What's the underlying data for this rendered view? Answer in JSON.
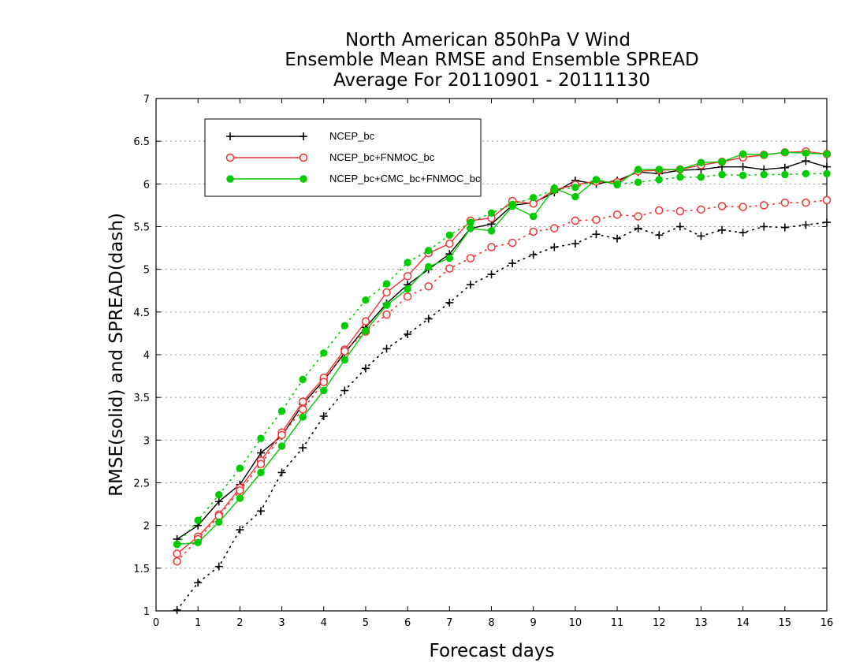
{
  "chart_data": {
    "type": "line",
    "title": [
      "North American 850hPa V Wind",
      "Ensemble Mean RMSE and Ensemble SPREAD",
      "Average For 20110901 - 20111130"
    ],
    "xlabel": "Forecast days",
    "ylabel": "RMSE(solid) and SPREAD(dash)",
    "xlim": [
      0,
      16
    ],
    "ylim": [
      1,
      7
    ],
    "xticks": [
      "0",
      "1",
      "2",
      "3",
      "4",
      "5",
      "6",
      "7",
      "8",
      "9",
      "10",
      "11",
      "12",
      "13",
      "14",
      "15",
      "16"
    ],
    "yticks": [
      "1",
      "1.5",
      "2",
      "2.5",
      "3",
      "3.5",
      "4",
      "4.5",
      "5",
      "5.5",
      "6",
      "6.5",
      "7"
    ],
    "grid": "horizontal dotted",
    "legend_position": "top-left",
    "x": [
      0.5,
      1,
      1.5,
      2,
      2.5,
      3,
      3.5,
      4,
      4.5,
      5,
      5.5,
      6,
      6.5,
      7,
      7.5,
      8,
      8.5,
      9,
      9.5,
      10,
      10.5,
      11,
      11.5,
      12,
      12.5,
      13,
      13.5,
      14,
      14.5,
      15,
      15.5,
      16
    ],
    "series": [
      {
        "name": "NCEP_bc",
        "color": "#000000",
        "marker": "plus",
        "rmse": [
          1.84,
          2.0,
          2.28,
          2.48,
          2.85,
          3.05,
          3.42,
          3.7,
          4.02,
          4.32,
          4.6,
          4.82,
          5.0,
          5.18,
          5.48,
          5.53,
          5.75,
          5.78,
          5.9,
          6.04,
          6.0,
          6.04,
          6.14,
          6.12,
          6.16,
          6.17,
          6.2,
          6.2,
          6.17,
          6.19,
          6.27,
          6.2
        ],
        "spread": [
          1.01,
          1.33,
          1.52,
          1.95,
          2.17,
          2.62,
          2.91,
          3.28,
          3.58,
          3.84,
          4.07,
          4.24,
          4.42,
          4.61,
          4.82,
          4.94,
          5.07,
          5.17,
          5.26,
          5.3,
          5.41,
          5.36,
          5.48,
          5.4,
          5.5,
          5.39,
          5.46,
          5.43,
          5.5,
          5.49,
          5.52,
          5.55
        ]
      },
      {
        "name": "NCEP_bc+FNMOC_bc",
        "color": "#ee3333",
        "marker": "open-circle",
        "rmse": [
          1.67,
          1.87,
          2.13,
          2.44,
          2.76,
          3.09,
          3.45,
          3.73,
          4.06,
          4.39,
          4.73,
          4.92,
          5.19,
          5.3,
          5.57,
          5.6,
          5.8,
          5.77,
          5.93,
          5.99,
          6.03,
          6.02,
          6.15,
          6.16,
          6.17,
          6.22,
          6.26,
          6.31,
          6.34,
          6.37,
          6.38,
          6.35
        ],
        "spread": [
          1.58,
          1.84,
          2.11,
          2.41,
          2.72,
          3.06,
          3.36,
          3.68,
          4.04,
          4.27,
          4.47,
          4.68,
          4.8,
          5.01,
          5.13,
          5.26,
          5.31,
          5.44,
          5.48,
          5.57,
          5.58,
          5.64,
          5.62,
          5.69,
          5.68,
          5.7,
          5.74,
          5.73,
          5.75,
          5.78,
          5.78,
          5.81
        ]
      },
      {
        "name": "NCEP_bc+CMC_bc+FNMOC_bc",
        "color": "#00cc00",
        "marker": "filled-circle",
        "rmse": [
          1.78,
          1.8,
          2.04,
          2.32,
          2.62,
          2.93,
          3.27,
          3.58,
          3.94,
          4.28,
          4.58,
          4.77,
          5.03,
          5.13,
          5.48,
          5.45,
          5.74,
          5.62,
          5.95,
          5.85,
          6.05,
          5.99,
          6.17,
          6.17,
          6.17,
          6.25,
          6.26,
          6.35,
          6.34,
          6.37,
          6.36,
          6.35
        ],
        "spread": [
          1.78,
          2.06,
          2.36,
          2.67,
          3.02,
          3.34,
          3.71,
          4.02,
          4.34,
          4.64,
          4.83,
          5.08,
          5.22,
          5.4,
          5.55,
          5.66,
          5.76,
          5.84,
          5.93,
          5.96,
          6.05,
          6.0,
          6.02,
          6.05,
          6.08,
          6.08,
          6.11,
          6.1,
          6.11,
          6.11,
          6.12,
          6.12
        ]
      }
    ]
  }
}
